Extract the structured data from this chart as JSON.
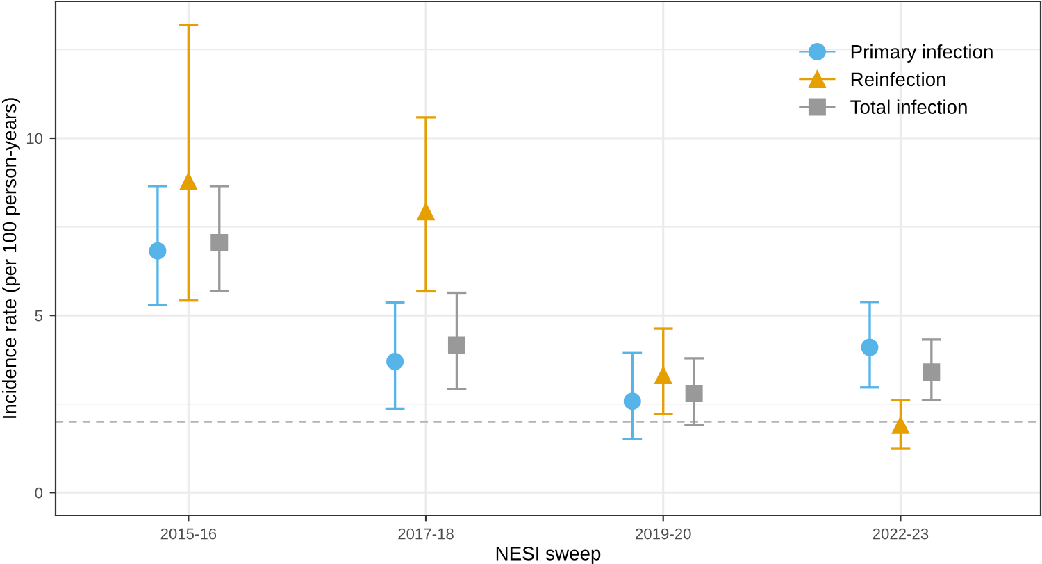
{
  "chart_data": {
    "type": "scatter",
    "xlabel": "NESI sweep",
    "ylabel": "Incidence rate (per 100 person-years)",
    "categories": [
      "2015-16",
      "2017-18",
      "2019-20",
      "2022-23"
    ],
    "series": [
      {
        "name": "Primary infection",
        "color": "#56b4e9",
        "marker": "circle",
        "values": [
          6.82,
          3.7,
          2.58,
          4.1
        ],
        "errors": [
          [
            5.3,
            8.65
          ],
          [
            2.37,
            5.37
          ],
          [
            1.51,
            3.94
          ],
          [
            2.97,
            5.38
          ]
        ]
      },
      {
        "name": "Reinfection",
        "color": "#e69f00",
        "marker": "triangle",
        "values": [
          8.78,
          7.93,
          3.31,
          1.9
        ],
        "errors": [
          [
            5.42,
            13.2
          ],
          [
            5.68,
            10.59
          ],
          [
            2.22,
            4.63
          ],
          [
            1.24,
            2.61
          ]
        ]
      },
      {
        "name": "Total infection",
        "color": "#999999",
        "marker": "square",
        "values": [
          7.05,
          4.16,
          2.8,
          3.4
        ],
        "errors": [
          [
            5.69,
            8.65
          ],
          [
            2.92,
            5.64
          ],
          [
            1.91,
            3.79
          ],
          [
            2.61,
            4.32
          ]
        ]
      }
    ],
    "ylim": [
      -0.64,
      13.86
    ],
    "yticks": [
      0,
      {
        "value": 2.5,
        "label": null
      },
      5,
      {
        "value": 7.5,
        "label": null
      },
      10,
      {
        "value": 12.5,
        "label": null
      }
    ],
    "ref_lines": [
      {
        "axis": "y",
        "value": 2,
        "color": "#b3b3b3",
        "line_style": "dashed"
      }
    ],
    "grid": true,
    "legend": "top right"
  }
}
